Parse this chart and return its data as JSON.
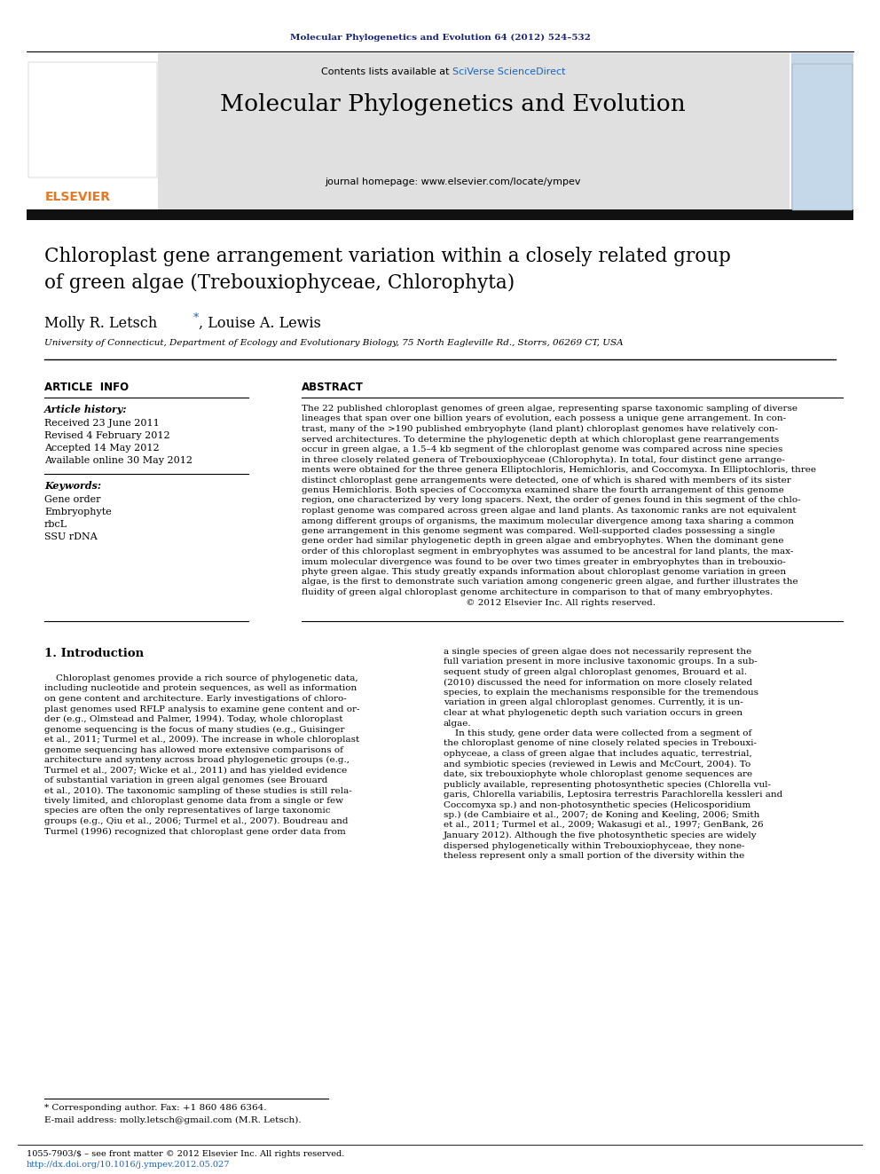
{
  "page_width": 9.92,
  "page_height": 13.23,
  "dpi": 100,
  "bg_color": "#ffffff",
  "journal_ref_color": "#1a237e",
  "journal_ref": "Molecular Phylogenetics and Evolution 64 (2012) 524–532",
  "header_bg": "#e0e0e0",
  "contents_line": "Contents lists available at SciVerse ScienceDirect",
  "sciverse_color": "#1565c0",
  "journal_title": "Molecular Phylogenetics and Evolution",
  "journal_homepage": "journal homepage: www.elsevier.com/locate/ympev",
  "elsevier_color": "#e87722",
  "black_bar_color": "#111111",
  "article_title_line1": "Chloroplast gene arrangement variation within a closely related group",
  "article_title_line2": "of green algae (Trebouxiophyceae, Chlorophyta)",
  "author_main": "Molly R. Letsch",
  "author_rest": ", Louise A. Lewis",
  "affiliation": "University of Connecticut, Department of Ecology and Evolutionary Biology, 75 North Eagleville Rd., Storrs, 06269 CT, USA",
  "article_info_header": "ARTICLE  INFO",
  "abstract_header": "ABSTRACT",
  "article_history_label": "Article history:",
  "received": "Received 23 June 2011",
  "revised": "Revised 4 February 2012",
  "accepted": "Accepted 14 May 2012",
  "available": "Available online 30 May 2012",
  "keywords_label": "Keywords:",
  "keywords": [
    "Gene order",
    "Embryophyte",
    "rbcL",
    "SSU rDNA"
  ],
  "abstract_lines": [
    "The 22 published chloroplast genomes of green algae, representing sparse taxonomic sampling of diverse",
    "lineages that span over one billion years of evolution, each possess a unique gene arrangement. In con-",
    "trast, many of the >190 published embryophyte (land plant) chloroplast genomes have relatively con-",
    "served architectures. To determine the phylogenetic depth at which chloroplast gene rearrangements",
    "occur in green algae, a 1.5–4 kb segment of the chloroplast genome was compared across nine species",
    "in three closely related genera of Trebouxiophyceae (Chlorophyta). In total, four distinct gene arrange-",
    "ments were obtained for the three genera Elliptochloris, Hemichloris, and Coccomyxa. In Elliptochloris, three",
    "distinct chloroplast gene arrangements were detected, one of which is shared with members of its sister",
    "genus Hemichloris. Both species of Coccomyxa examined share the fourth arrangement of this genome",
    "region, one characterized by very long spacers. Next, the order of genes found in this segment of the chlo-",
    "roplast genome was compared across green algae and land plants. As taxonomic ranks are not equivalent",
    "among different groups of organisms, the maximum molecular divergence among taxa sharing a common",
    "gene arrangement in this genome segment was compared. Well-supported clades possessing a single",
    "gene order had similar phylogenetic depth in green algae and embryophytes. When the dominant gene",
    "order of this chloroplast segment in embryophytes was assumed to be ancestral for land plants, the max-",
    "imum molecular divergence was found to be over two times greater in embryophytes than in trebouxio-",
    "phyte green algae. This study greatly expands information about chloroplast genome variation in green",
    "algae, is the first to demonstrate such variation among congeneric green algae, and further illustrates the",
    "fluidity of green algal chloroplast genome architecture in comparison to that of many embryophytes.",
    "                                                         © 2012 Elsevier Inc. All rights reserved."
  ],
  "section1_title": "1. Introduction",
  "intro_col1_lines": [
    "    Chloroplast genomes provide a rich source of phylogenetic data,",
    "including nucleotide and protein sequences, as well as information",
    "on gene content and architecture. Early investigations of chloro-",
    "plast genomes used RFLP analysis to examine gene content and or-",
    "der (e.g., Olmstead and Palmer, 1994). Today, whole chloroplast",
    "genome sequencing is the focus of many studies (e.g., Guisinger",
    "et al., 2011; Turmel et al., 2009). The increase in whole chloroplast",
    "genome sequencing has allowed more extensive comparisons of",
    "architecture and synteny across broad phylogenetic groups (e.g.,",
    "Turmel et al., 2007; Wicke et al., 2011) and has yielded evidence",
    "of substantial variation in green algal genomes (see Brouard",
    "et al., 2010). The taxonomic sampling of these studies is still rela-",
    "tively limited, and chloroplast genome data from a single or few",
    "species are often the only representatives of large taxonomic",
    "groups (e.g., Qiu et al., 2006; Turmel et al., 2007). Boudreau and",
    "Turmel (1996) recognized that chloroplast gene order data from"
  ],
  "intro_col2_lines": [
    "a single species of green algae does not necessarily represent the",
    "full variation present in more inclusive taxonomic groups. In a sub-",
    "sequent study of green algal chloroplast genomes, Brouard et al.",
    "(2010) discussed the need for information on more closely related",
    "species, to explain the mechanisms responsible for the tremendous",
    "variation in green algal chloroplast genomes. Currently, it is un-",
    "clear at what phylogenetic depth such variation occurs in green",
    "algae.",
    "    In this study, gene order data were collected from a segment of",
    "the chloroplast genome of nine closely related species in Trebouxi-",
    "ophyceae, a class of green algae that includes aquatic, terrestrial,",
    "and symbiotic species (reviewed in Lewis and McCourt, 2004). To",
    "date, six trebouxiophyte whole chloroplast genome sequences are",
    "publicly available, representing photosynthetic species (Chlorella vul-",
    "garis, Chlorella variabilis, Leptosira terrestris Parachlorella kessleri and",
    "Coccomyxa sp.) and non-photosynthetic species (Helicosporidium",
    "sp.) (de Cambiaire et al., 2007; de Koning and Keeling, 2006; Smith",
    "et al., 2011; Turmel et al., 2009; Wakasugi et al., 1997; GenBank, 26",
    "January 2012). Although the five photosynthetic species are widely",
    "dispersed phylogenetically within Trebouxiophyceae, they none-",
    "theless represent only a small portion of the diversity within the"
  ],
  "footnote_line1": "* Corresponding author. Fax: +1 860 486 6364.",
  "footnote_line2": "E-mail address: molly.letsch@gmail.com (M.R. Letsch).",
  "issn_line": "1055-7903/$ – see front matter © 2012 Elsevier Inc. All rights reserved.",
  "doi_line": "http://dx.doi.org/10.1016/j.ympev.2012.05.027",
  "link_color": "#1565c0"
}
